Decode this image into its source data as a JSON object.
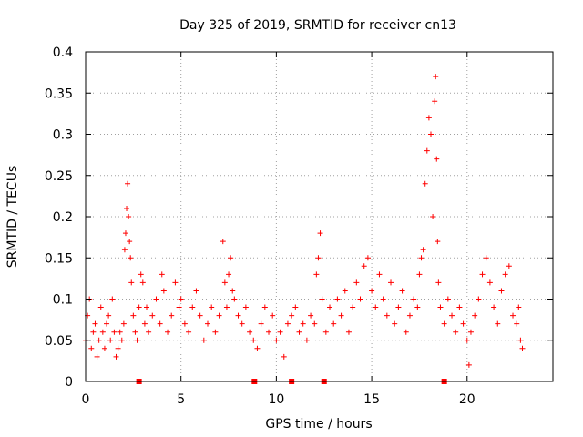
{
  "colors": {
    "series": "#ff0000",
    "grid": "#a0a0a0",
    "axis": "#000000",
    "background": "#ffffff"
  },
  "chart_data": {
    "type": "scatter",
    "title": "Day 325 of 2019, SRMTID for receiver cn13",
    "xlabel": "GPS time / hours",
    "ylabel": "SRMTID / TECUs",
    "xlim": [
      0,
      24.5
    ],
    "ylim": [
      0,
      0.4
    ],
    "xticks": [
      0,
      5,
      10,
      15,
      20
    ],
    "xtick_labels": [
      "0",
      "5",
      "10",
      "15",
      "20"
    ],
    "yticks": [
      0,
      0.05,
      0.1,
      0.15,
      0.2,
      0.25,
      0.3,
      0.35,
      0.4
    ],
    "ytick_labels": [
      "0",
      "0.05",
      "0.1",
      "0.15",
      "0.2",
      "0.25",
      "0.3",
      "0.35",
      "0.4"
    ],
    "grid": true,
    "marker": "plus",
    "series": [
      {
        "name": "SRMTID",
        "note": "dense scatter; values sampled from the figure (x in hours, y in TECU)",
        "points": [
          [
            0.0,
            0.05
          ],
          [
            0.1,
            0.08
          ],
          [
            0.2,
            0.1
          ],
          [
            0.3,
            0.04
          ],
          [
            0.4,
            0.06
          ],
          [
            0.5,
            0.07
          ],
          [
            0.6,
            0.03
          ],
          [
            0.7,
            0.05
          ],
          [
            0.8,
            0.09
          ],
          [
            0.9,
            0.06
          ],
          [
            1.0,
            0.04
          ],
          [
            1.1,
            0.07
          ],
          [
            1.2,
            0.08
          ],
          [
            1.3,
            0.05
          ],
          [
            1.4,
            0.1
          ],
          [
            1.5,
            0.06
          ],
          [
            1.6,
            0.03
          ],
          [
            1.7,
            0.04
          ],
          [
            1.8,
            0.06
          ],
          [
            1.9,
            0.05
          ],
          [
            2.0,
            0.07
          ],
          [
            2.05,
            0.16
          ],
          [
            2.1,
            0.18
          ],
          [
            2.15,
            0.21
          ],
          [
            2.2,
            0.24
          ],
          [
            2.25,
            0.2
          ],
          [
            2.3,
            0.17
          ],
          [
            2.35,
            0.15
          ],
          [
            2.4,
            0.12
          ],
          [
            2.5,
            0.08
          ],
          [
            2.6,
            0.06
          ],
          [
            2.7,
            0.05
          ],
          [
            2.8,
            0.09
          ],
          [
            2.9,
            0.13
          ],
          [
            3.0,
            0.12
          ],
          [
            3.1,
            0.07
          ],
          [
            3.2,
            0.09
          ],
          [
            3.3,
            0.06
          ],
          [
            3.5,
            0.08
          ],
          [
            3.7,
            0.1
          ],
          [
            3.9,
            0.07
          ],
          [
            4.0,
            0.13
          ],
          [
            4.1,
            0.11
          ],
          [
            4.3,
            0.06
          ],
          [
            4.5,
            0.08
          ],
          [
            4.7,
            0.12
          ],
          [
            4.9,
            0.09
          ],
          [
            5.0,
            0.1
          ],
          [
            5.2,
            0.07
          ],
          [
            5.4,
            0.06
          ],
          [
            5.6,
            0.09
          ],
          [
            5.8,
            0.11
          ],
          [
            6.0,
            0.08
          ],
          [
            6.2,
            0.05
          ],
          [
            6.4,
            0.07
          ],
          [
            6.6,
            0.09
          ],
          [
            6.8,
            0.06
          ],
          [
            7.0,
            0.08
          ],
          [
            7.2,
            0.17
          ],
          [
            7.3,
            0.12
          ],
          [
            7.4,
            0.09
          ],
          [
            7.5,
            0.13
          ],
          [
            7.6,
            0.15
          ],
          [
            7.7,
            0.11
          ],
          [
            7.8,
            0.1
          ],
          [
            8.0,
            0.08
          ],
          [
            8.2,
            0.07
          ],
          [
            8.4,
            0.09
          ],
          [
            8.6,
            0.06
          ],
          [
            8.8,
            0.05
          ],
          [
            9.0,
            0.04
          ],
          [
            9.2,
            0.07
          ],
          [
            9.4,
            0.09
          ],
          [
            9.6,
            0.06
          ],
          [
            9.8,
            0.08
          ],
          [
            10.0,
            0.05
          ],
          [
            10.2,
            0.06
          ],
          [
            10.4,
            0.03
          ],
          [
            10.6,
            0.07
          ],
          [
            10.8,
            0.08
          ],
          [
            11.0,
            0.09
          ],
          [
            11.2,
            0.06
          ],
          [
            11.4,
            0.07
          ],
          [
            11.6,
            0.05
          ],
          [
            11.8,
            0.08
          ],
          [
            12.0,
            0.07
          ],
          [
            12.1,
            0.13
          ],
          [
            12.2,
            0.15
          ],
          [
            12.3,
            0.18
          ],
          [
            12.4,
            0.1
          ],
          [
            12.6,
            0.06
          ],
          [
            12.8,
            0.09
          ],
          [
            13.0,
            0.07
          ],
          [
            13.2,
            0.1
          ],
          [
            13.4,
            0.08
          ],
          [
            13.6,
            0.11
          ],
          [
            13.8,
            0.06
          ],
          [
            14.0,
            0.09
          ],
          [
            14.2,
            0.12
          ],
          [
            14.4,
            0.1
          ],
          [
            14.6,
            0.14
          ],
          [
            14.8,
            0.15
          ],
          [
            15.0,
            0.11
          ],
          [
            15.2,
            0.09
          ],
          [
            15.4,
            0.13
          ],
          [
            15.6,
            0.1
          ],
          [
            15.8,
            0.08
          ],
          [
            16.0,
            0.12
          ],
          [
            16.2,
            0.07
          ],
          [
            16.4,
            0.09
          ],
          [
            16.6,
            0.11
          ],
          [
            16.8,
            0.06
          ],
          [
            17.0,
            0.08
          ],
          [
            17.2,
            0.1
          ],
          [
            17.4,
            0.09
          ],
          [
            17.5,
            0.13
          ],
          [
            17.6,
            0.15
          ],
          [
            17.7,
            0.16
          ],
          [
            17.8,
            0.24
          ],
          [
            17.9,
            0.28
          ],
          [
            18.0,
            0.32
          ],
          [
            18.1,
            0.3
          ],
          [
            18.2,
            0.2
          ],
          [
            18.3,
            0.34
          ],
          [
            18.35,
            0.37
          ],
          [
            18.4,
            0.27
          ],
          [
            18.45,
            0.17
          ],
          [
            18.5,
            0.12
          ],
          [
            18.6,
            0.09
          ],
          [
            18.8,
            0.07
          ],
          [
            19.0,
            0.1
          ],
          [
            19.2,
            0.08
          ],
          [
            19.4,
            0.06
          ],
          [
            19.6,
            0.09
          ],
          [
            19.8,
            0.07
          ],
          [
            20.0,
            0.05
          ],
          [
            20.1,
            0.02
          ],
          [
            20.2,
            0.06
          ],
          [
            20.4,
            0.08
          ],
          [
            20.6,
            0.1
          ],
          [
            20.8,
            0.13
          ],
          [
            21.0,
            0.15
          ],
          [
            21.2,
            0.12
          ],
          [
            21.4,
            0.09
          ],
          [
            21.6,
            0.07
          ],
          [
            21.8,
            0.11
          ],
          [
            22.0,
            0.13
          ],
          [
            22.2,
            0.14
          ],
          [
            22.4,
            0.08
          ],
          [
            22.6,
            0.07
          ],
          [
            22.7,
            0.09
          ],
          [
            22.8,
            0.05
          ],
          [
            22.9,
            0.04
          ]
        ]
      }
    ],
    "gap_markers": [
      2.8,
      8.85,
      10.8,
      12.5,
      18.8
    ]
  }
}
